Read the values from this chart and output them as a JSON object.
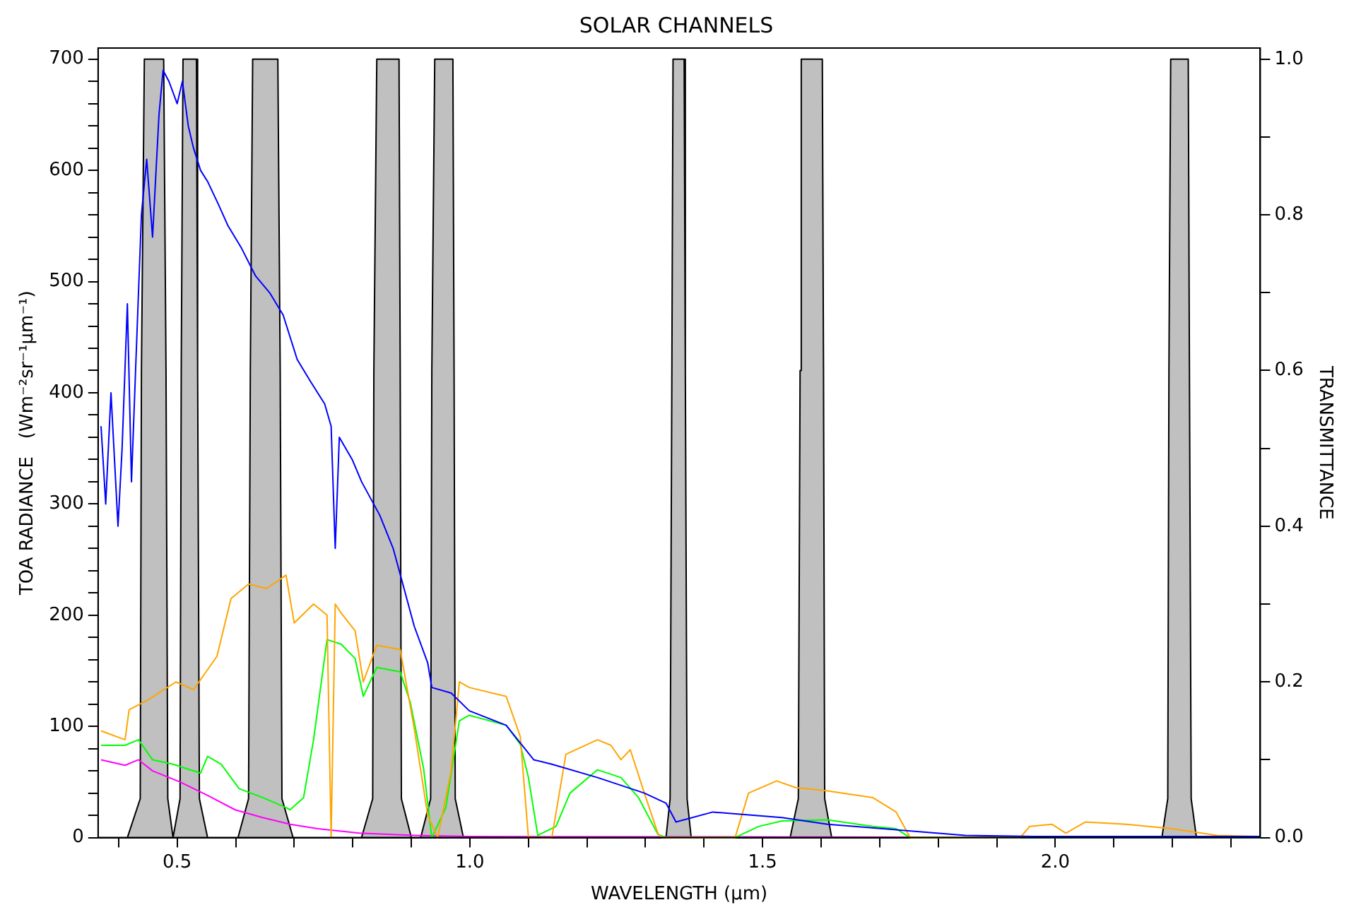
{
  "chart_data": {
    "type": "line",
    "title": "SOLAR CHANNELS",
    "xlabel": "WAVELENGTH (µm)",
    "ylabel": "TOA RADIANCE   (Wm⁻²sr⁻¹µm⁻¹)",
    "y2label": "TRANSMITTANCE",
    "legend": false,
    "grid": false,
    "xlim": [
      0.365,
      2.35
    ],
    "xticks": [
      {
        "value": 0.4,
        "label": null
      },
      {
        "value": 0.5,
        "label": "0.5"
      },
      {
        "value": 0.6,
        "label": null
      },
      {
        "value": 0.7,
        "label": null
      },
      {
        "value": 0.8,
        "label": null
      },
      {
        "value": 0.9,
        "label": null
      },
      {
        "value": 1,
        "label": "1.0"
      },
      {
        "value": 1.1,
        "label": null
      },
      {
        "value": 1.2,
        "label": null
      },
      {
        "value": 1.3,
        "label": null
      },
      {
        "value": 1.4,
        "label": null
      },
      {
        "value": 1.5,
        "label": "1.5"
      },
      {
        "value": 1.6,
        "label": null
      },
      {
        "value": 1.7,
        "label": null
      },
      {
        "value": 1.8,
        "label": null
      },
      {
        "value": 1.9,
        "label": null
      },
      {
        "value": 2,
        "label": "2.0"
      },
      {
        "value": 2.1,
        "label": null
      },
      {
        "value": 2.2,
        "label": null
      },
      {
        "value": 2.3,
        "label": null
      }
    ],
    "ylim": [
      0,
      710
    ],
    "yticks": [
      0,
      {
        "value": 20,
        "label": null
      },
      {
        "value": 40,
        "label": null
      },
      {
        "value": 60,
        "label": null
      },
      {
        "value": 80,
        "label": null
      },
      100,
      {
        "value": 120,
        "label": null
      },
      {
        "value": 140,
        "label": null
      },
      {
        "value": 160,
        "label": null
      },
      {
        "value": 180,
        "label": null
      },
      200,
      {
        "value": 220,
        "label": null
      },
      {
        "value": 240,
        "label": null
      },
      {
        "value": 260,
        "label": null
      },
      {
        "value": 280,
        "label": null
      },
      300,
      {
        "value": 320,
        "label": null
      },
      {
        "value": 340,
        "label": null
      },
      {
        "value": 360,
        "label": null
      },
      {
        "value": 380,
        "label": null
      },
      400,
      {
        "value": 420,
        "label": null
      },
      {
        "value": 440,
        "label": null
      },
      {
        "value": 460,
        "label": null
      },
      {
        "value": 480,
        "label": null
      },
      500,
      {
        "value": 520,
        "label": null
      },
      {
        "value": 540,
        "label": null
      },
      {
        "value": 560,
        "label": null
      },
      {
        "value": 580,
        "label": null
      },
      600,
      {
        "value": 620,
        "label": null
      },
      {
        "value": 640,
        "label": null
      },
      {
        "value": 660,
        "label": null
      },
      {
        "value": 680,
        "label": null
      },
      700
    ],
    "y2lim": [
      0,
      1.0143
    ],
    "y2ticks": [
      {
        "value": 0,
        "label": "0.0"
      },
      {
        "value": 0.1,
        "label": null
      },
      {
        "value": 0.2,
        "label": "0.2"
      },
      {
        "value": 0.3,
        "label": null
      },
      {
        "value": 0.4,
        "label": "0.4"
      },
      {
        "value": 0.5,
        "label": null
      },
      {
        "value": 0.6,
        "label": "0.6"
      },
      {
        "value": 0.7,
        "label": null
      },
      {
        "value": 0.8,
        "label": "0.8"
      },
      {
        "value": 0.9,
        "label": null
      },
      {
        "value": 1,
        "label": "1.0"
      }
    ],
    "series": [
      {
        "color": "#0000ff",
        "x": [
          0.37,
          0.378,
          0.387,
          0.399,
          0.406,
          0.415,
          0.422,
          0.429,
          0.439,
          0.448,
          0.458,
          0.469,
          0.476,
          0.486,
          0.5,
          0.509,
          0.519,
          0.528,
          0.54,
          0.552,
          0.57,
          0.587,
          0.61,
          0.634,
          0.658,
          0.681,
          0.693,
          0.705,
          0.728,
          0.752,
          0.763,
          0.77,
          0.777,
          0.799,
          0.815,
          0.846,
          0.869,
          0.905,
          0.928,
          0.935,
          0.968,
          0.999,
          1.062,
          1.109,
          1.14,
          1.218,
          1.298,
          1.335,
          1.352,
          1.415,
          1.533,
          1.611,
          1.728,
          1.846,
          1.963,
          2.35
        ],
        "values": [
          370,
          300,
          400,
          280,
          350,
          480,
          320,
          420,
          560,
          610,
          540,
          650,
          690,
          680,
          660,
          680,
          640,
          620,
          600,
          590,
          570,
          550,
          530,
          505,
          490,
          470,
          450,
          430,
          410,
          390,
          370,
          260,
          360,
          340,
          320,
          290,
          260,
          190,
          157,
          135,
          130,
          114,
          101,
          70,
          66,
          54,
          40,
          31,
          14,
          23,
          18,
          12,
          7,
          2,
          1,
          1
        ]
      },
      {
        "color": "#ffa500",
        "x": [
          0.37,
          0.411,
          0.418,
          0.451,
          0.498,
          0.528,
          0.568,
          0.592,
          0.622,
          0.653,
          0.686,
          0.7,
          0.733,
          0.756,
          0.763,
          0.77,
          0.78,
          0.804,
          0.818,
          0.841,
          0.881,
          0.905,
          0.928,
          0.945,
          0.968,
          0.982,
          0.999,
          1.062,
          1.086,
          1.1,
          1.14,
          1.164,
          1.218,
          1.241,
          1.258,
          1.274,
          1.298,
          1.321,
          1.328,
          1.453,
          1.476,
          1.524,
          1.556,
          1.611,
          1.688,
          1.728,
          1.752,
          1.94,
          1.956,
          1.994,
          2.018,
          2.051,
          2.121,
          2.199,
          2.276,
          2.35
        ],
        "values": [
          96,
          88,
          115,
          124,
          140,
          133,
          163,
          215,
          228,
          224,
          236,
          193,
          210,
          200,
          0,
          210,
          202,
          186,
          140,
          173,
          169,
          98,
          20,
          0,
          60,
          140,
          135,
          127,
          91,
          0,
          0,
          75,
          88,
          83,
          70,
          79,
          40,
          4,
          0,
          0,
          40,
          51,
          45,
          42,
          36,
          23,
          0,
          0,
          10,
          12,
          4,
          14,
          12,
          8,
          2,
          1
        ]
      },
      {
        "color": "#00ff00",
        "x": [
          0.37,
          0.411,
          0.434,
          0.458,
          0.493,
          0.516,
          0.54,
          0.552,
          0.575,
          0.606,
          0.646,
          0.686,
          0.693,
          0.716,
          0.733,
          0.756,
          0.78,
          0.804,
          0.818,
          0.841,
          0.881,
          0.898,
          0.921,
          0.935,
          0.959,
          0.982,
          0.999,
          1.062,
          1.086,
          1.1,
          1.116,
          1.147,
          1.171,
          1.218,
          1.258,
          1.288,
          1.321,
          1.335,
          1.453,
          1.493,
          1.533,
          1.611,
          1.688,
          1.728,
          1.752,
          2.35
        ],
        "values": [
          83,
          83,
          88,
          70,
          66,
          62,
          58,
          73,
          66,
          44,
          36,
          27,
          25,
          36,
          88,
          178,
          174,
          161,
          127,
          153,
          149,
          122,
          62,
          0,
          27,
          105,
          110,
          101,
          84,
          54,
          2,
          10,
          40,
          61,
          54,
          36,
          3,
          0,
          0,
          10,
          15,
          16,
          10,
          8,
          0,
          0
        ]
      },
      {
        "color": "#ff00ff",
        "x": [
          0.37,
          0.411,
          0.434,
          0.458,
          0.505,
          0.552,
          0.599,
          0.646,
          0.693,
          0.74,
          0.811,
          0.905,
          0.999,
          2.35
        ],
        "values": [
          70,
          65,
          70,
          60,
          50,
          38,
          25,
          18,
          12,
          8,
          4,
          2,
          1,
          0
        ]
      },
      {
        "type": "area",
        "axis": "y2",
        "color": "#c0c0c0",
        "x": [
          0.415,
          0.437,
          0.439,
          0.444,
          0.477,
          0.481,
          0.484,
          0.493
        ],
        "values": [
          0,
          0.05,
          0.6,
          1,
          1,
          0.6,
          0.05,
          0
        ]
      },
      {
        "type": "area",
        "axis": "y2",
        "color": "#c0c0c0",
        "x": [
          0.493,
          0.505,
          0.507,
          0.51,
          0.533,
          0.535,
          0.538,
          0.552
        ],
        "values": [
          0,
          0.05,
          0.6,
          1,
          1,
          0.6,
          0.05,
          0
        ]
      },
      {
        "type": "area",
        "axis": "y2",
        "color": "#c0c0c0",
        "x": [
          0.604,
          0.622,
          0.625,
          0.629,
          0.672,
          0.676,
          0.679,
          0.698
        ],
        "values": [
          0,
          0.05,
          0.6,
          1,
          1,
          0.6,
          0.05,
          0
        ]
      },
      {
        "type": "area",
        "axis": "y2",
        "color": "#c0c0c0",
        "x": [
          0.815,
          0.834,
          0.836,
          0.841,
          0.879,
          0.881,
          0.883,
          0.9
        ],
        "values": [
          0,
          0.05,
          0.6,
          1,
          1,
          0.6,
          0.05,
          0
        ]
      },
      {
        "type": "area",
        "axis": "y2",
        "color": "#c0c0c0",
        "x": [
          0.916,
          0.933,
          0.935,
          0.94,
          0.971,
          0.973,
          0.975,
          0.989
        ],
        "values": [
          0,
          0.05,
          0.6,
          1,
          1,
          0.6,
          0.05,
          0
        ]
      },
      {
        "type": "area",
        "axis": "y2",
        "color": "#c0c0c0",
        "x": [
          1.335,
          1.342,
          1.345,
          1.347,
          1.366,
          1.368,
          1.371,
          1.378
        ],
        "values": [
          0,
          0.05,
          0.6,
          1,
          1,
          0.6,
          0.05,
          0
        ]
      },
      {
        "type": "area",
        "axis": "y2",
        "color": "#c0c0c0",
        "x": [
          1.547,
          1.561,
          1.564,
          1.566,
          1.602,
          1.604,
          1.606,
          1.618
        ],
        "values": [
          0,
          0.05,
          0.6,
          1,
          1,
          0.6,
          0.05,
          0
        ]
      },
      {
        "type": "area",
        "axis": "y2",
        "color": "#c0c0c0",
        "x": [
          2.182,
          2.192,
          2.194,
          2.197,
          2.227,
          2.229,
          2.232,
          2.241
        ],
        "values": [
          0,
          0.05,
          0.6,
          1,
          1,
          0.6,
          0.05,
          0
        ]
      }
    ]
  }
}
